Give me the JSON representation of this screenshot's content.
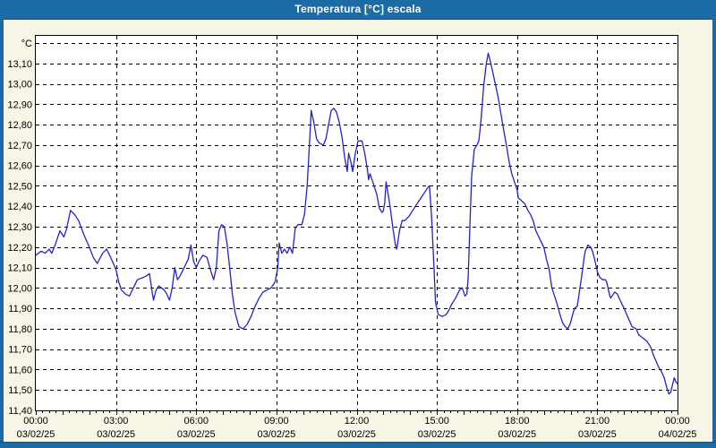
{
  "window": {
    "title": "Temperatura [°C] escala"
  },
  "colors": {
    "chrome_blue": "#1C6BA4",
    "background": "#F7F5E6",
    "plot_background": "#FFFFFF",
    "grid": "#000000",
    "axis_text": "#000000",
    "series_line": "#2323CB"
  },
  "chart_data": {
    "type": "line",
    "title": "Temperatura [°C] escala",
    "ylabel_unit": "°C",
    "ylim": [
      11.4,
      13.2
    ],
    "y_tick_step": 0.1,
    "y_tick_labels": [
      "11,40",
      "11,50",
      "11,60",
      "11,70",
      "11,80",
      "11,90",
      "12,00",
      "12,10",
      "12,20",
      "12,30",
      "12,40",
      "12,50",
      "12,60",
      "12,70",
      "12,80",
      "12,90",
      "13,00",
      "13,10"
    ],
    "xlim_hours": [
      0,
      24
    ],
    "x_major_step_hours": 3,
    "x_minor_tick_hours": 0.25,
    "x_ticks": [
      {
        "time": "00:00",
        "date": "03/02/25"
      },
      {
        "time": "03:00",
        "date": "03/02/25"
      },
      {
        "time": "06:00",
        "date": "03/02/25"
      },
      {
        "time": "09:00",
        "date": "03/02/25"
      },
      {
        "time": "12:00",
        "date": "03/02/25"
      },
      {
        "time": "15:00",
        "date": "03/02/25"
      },
      {
        "time": "18:00",
        "date": "03/02/25"
      },
      {
        "time": "21:00",
        "date": "03/02/25"
      },
      {
        "time": "00:00",
        "date": "04/02/25"
      }
    ],
    "grid_style": "dashed",
    "legend": "none",
    "series": [
      {
        "name": "Temperatura [°C]",
        "color": "#2323CB",
        "points_time_hours_value_c": [
          [
            0.0,
            12.16
          ],
          [
            0.2,
            12.18
          ],
          [
            0.35,
            12.17
          ],
          [
            0.5,
            12.19
          ],
          [
            0.6,
            12.17
          ],
          [
            0.75,
            12.22
          ],
          [
            0.9,
            12.28
          ],
          [
            1.05,
            12.25
          ],
          [
            1.15,
            12.29
          ],
          [
            1.3,
            12.38
          ],
          [
            1.45,
            12.36
          ],
          [
            1.6,
            12.33
          ],
          [
            1.8,
            12.26
          ],
          [
            2.0,
            12.2
          ],
          [
            2.15,
            12.15
          ],
          [
            2.3,
            12.12
          ],
          [
            2.5,
            12.17
          ],
          [
            2.65,
            12.19
          ],
          [
            2.8,
            12.15
          ],
          [
            3.0,
            12.09
          ],
          [
            3.1,
            12.03
          ],
          [
            3.2,
            11.99
          ],
          [
            3.35,
            11.97
          ],
          [
            3.5,
            11.96
          ],
          [
            3.65,
            12.0
          ],
          [
            3.8,
            12.04
          ],
          [
            4.0,
            12.05
          ],
          [
            4.15,
            12.06
          ],
          [
            4.25,
            12.07
          ],
          [
            4.35,
            11.98
          ],
          [
            4.4,
            11.94
          ],
          [
            4.5,
            11.99
          ],
          [
            4.6,
            12.01
          ],
          [
            4.7,
            12.0
          ],
          [
            4.8,
            11.99
          ],
          [
            4.9,
            11.97
          ],
          [
            5.0,
            11.94
          ],
          [
            5.1,
            12.0
          ],
          [
            5.2,
            12.1
          ],
          [
            5.3,
            12.04
          ],
          [
            5.4,
            12.06
          ],
          [
            5.55,
            12.1
          ],
          [
            5.7,
            12.14
          ],
          [
            5.8,
            12.21
          ],
          [
            5.9,
            12.13
          ],
          [
            6.0,
            12.1
          ],
          [
            6.1,
            12.13
          ],
          [
            6.25,
            12.16
          ],
          [
            6.4,
            12.15
          ],
          [
            6.55,
            12.08
          ],
          [
            6.65,
            12.04
          ],
          [
            6.75,
            12.1
          ],
          [
            6.85,
            12.28
          ],
          [
            6.95,
            12.31
          ],
          [
            7.05,
            12.3
          ],
          [
            7.15,
            12.22
          ],
          [
            7.25,
            12.1
          ],
          [
            7.35,
            11.97
          ],
          [
            7.45,
            11.88
          ],
          [
            7.6,
            11.81
          ],
          [
            7.75,
            11.8
          ],
          [
            7.9,
            11.82
          ],
          [
            8.05,
            11.86
          ],
          [
            8.2,
            11.91
          ],
          [
            8.35,
            11.95
          ],
          [
            8.5,
            11.98
          ],
          [
            8.65,
            11.99
          ],
          [
            8.8,
            12.0
          ],
          [
            8.95,
            12.03
          ],
          [
            9.05,
            12.1
          ],
          [
            9.1,
            12.22
          ],
          [
            9.2,
            12.17
          ],
          [
            9.3,
            12.19
          ],
          [
            9.4,
            12.17
          ],
          [
            9.5,
            12.2
          ],
          [
            9.6,
            12.17
          ],
          [
            9.7,
            12.29
          ],
          [
            9.8,
            12.31
          ],
          [
            9.95,
            12.31
          ],
          [
            10.05,
            12.36
          ],
          [
            10.15,
            12.5
          ],
          [
            10.25,
            12.74
          ],
          [
            10.3,
            12.87
          ],
          [
            10.4,
            12.81
          ],
          [
            10.5,
            12.73
          ],
          [
            10.6,
            12.71
          ],
          [
            10.75,
            12.7
          ],
          [
            10.85,
            12.73
          ],
          [
            10.95,
            12.8
          ],
          [
            11.05,
            12.87
          ],
          [
            11.15,
            12.88
          ],
          [
            11.25,
            12.86
          ],
          [
            11.35,
            12.81
          ],
          [
            11.45,
            12.74
          ],
          [
            11.55,
            12.64
          ],
          [
            11.65,
            12.57
          ],
          [
            11.7,
            12.66
          ],
          [
            11.78,
            12.62
          ],
          [
            11.85,
            12.57
          ],
          [
            11.95,
            12.66
          ],
          [
            12.05,
            12.72
          ],
          [
            12.2,
            12.72
          ],
          [
            12.3,
            12.66
          ],
          [
            12.4,
            12.58
          ],
          [
            12.45,
            12.53
          ],
          [
            12.5,
            12.56
          ],
          [
            12.55,
            12.54
          ],
          [
            12.65,
            12.5
          ],
          [
            12.75,
            12.46
          ],
          [
            12.85,
            12.39
          ],
          [
            12.95,
            12.37
          ],
          [
            13.0,
            12.38
          ],
          [
            13.05,
            12.42
          ],
          [
            13.1,
            12.52
          ],
          [
            13.15,
            12.48
          ],
          [
            13.25,
            12.4
          ],
          [
            13.35,
            12.3
          ],
          [
            13.45,
            12.21
          ],
          [
            13.5,
            12.19
          ],
          [
            13.6,
            12.28
          ],
          [
            13.7,
            12.33
          ],
          [
            13.8,
            12.33
          ],
          [
            13.95,
            12.35
          ],
          [
            14.1,
            12.38
          ],
          [
            14.25,
            12.41
          ],
          [
            14.4,
            12.44
          ],
          [
            14.55,
            12.47
          ],
          [
            14.65,
            12.49
          ],
          [
            14.72,
            12.5
          ],
          [
            14.8,
            12.35
          ],
          [
            14.85,
            12.22
          ],
          [
            14.9,
            12.08
          ],
          [
            14.95,
            11.93
          ],
          [
            15.05,
            11.87
          ],
          [
            15.2,
            11.86
          ],
          [
            15.35,
            11.87
          ],
          [
            15.45,
            11.89
          ],
          [
            15.55,
            11.92
          ],
          [
            15.7,
            11.95
          ],
          [
            15.85,
            11.99
          ],
          [
            15.95,
            12.0
          ],
          [
            16.05,
            11.96
          ],
          [
            16.12,
            11.97
          ],
          [
            16.17,
            12.05
          ],
          [
            16.22,
            12.25
          ],
          [
            16.3,
            12.55
          ],
          [
            16.4,
            12.68
          ],
          [
            16.5,
            12.7
          ],
          [
            16.57,
            12.72
          ],
          [
            16.65,
            12.82
          ],
          [
            16.75,
            12.99
          ],
          [
            16.85,
            13.1
          ],
          [
            16.92,
            13.15
          ],
          [
            17.0,
            13.11
          ],
          [
            17.1,
            13.05
          ],
          [
            17.2,
            12.99
          ],
          [
            17.3,
            12.93
          ],
          [
            17.45,
            12.81
          ],
          [
            17.6,
            12.7
          ],
          [
            17.7,
            12.62
          ],
          [
            17.8,
            12.56
          ],
          [
            17.9,
            12.52
          ],
          [
            18.0,
            12.48
          ],
          [
            18.05,
            12.44
          ],
          [
            18.15,
            12.43
          ],
          [
            18.3,
            12.41
          ],
          [
            18.4,
            12.38
          ],
          [
            18.5,
            12.36
          ],
          [
            18.6,
            12.33
          ],
          [
            18.7,
            12.28
          ],
          [
            18.85,
            12.24
          ],
          [
            19.0,
            12.2
          ],
          [
            19.1,
            12.14
          ],
          [
            19.2,
            12.09
          ],
          [
            19.3,
            12.0
          ],
          [
            19.4,
            11.96
          ],
          [
            19.5,
            11.92
          ],
          [
            19.6,
            11.87
          ],
          [
            19.7,
            11.83
          ],
          [
            19.8,
            11.81
          ],
          [
            19.9,
            11.8
          ],
          [
            20.0,
            11.83
          ],
          [
            20.1,
            11.88
          ],
          [
            20.15,
            11.9
          ],
          [
            20.25,
            11.91
          ],
          [
            20.35,
            12.0
          ],
          [
            20.42,
            12.06
          ],
          [
            20.5,
            12.14
          ],
          [
            20.55,
            12.18
          ],
          [
            20.65,
            12.21
          ],
          [
            20.75,
            12.2
          ],
          [
            20.82,
            12.18
          ],
          [
            20.9,
            12.14
          ],
          [
            21.0,
            12.08
          ],
          [
            21.1,
            12.05
          ],
          [
            21.2,
            12.04
          ],
          [
            21.3,
            12.04
          ],
          [
            21.35,
            12.03
          ],
          [
            21.45,
            11.97
          ],
          [
            21.5,
            11.95
          ],
          [
            21.6,
            11.97
          ],
          [
            21.65,
            11.98
          ],
          [
            21.75,
            11.97
          ],
          [
            21.85,
            11.94
          ],
          [
            22.0,
            11.9
          ],
          [
            22.1,
            11.87
          ],
          [
            22.2,
            11.84
          ],
          [
            22.3,
            11.81
          ],
          [
            22.45,
            11.8
          ],
          [
            22.55,
            11.77
          ],
          [
            22.65,
            11.76
          ],
          [
            22.75,
            11.75
          ],
          [
            22.85,
            11.74
          ],
          [
            23.0,
            11.71
          ],
          [
            23.1,
            11.67
          ],
          [
            23.2,
            11.64
          ],
          [
            23.3,
            11.61
          ],
          [
            23.4,
            11.59
          ],
          [
            23.5,
            11.56
          ],
          [
            23.6,
            11.51
          ],
          [
            23.68,
            11.48
          ],
          [
            23.75,
            11.49
          ],
          [
            23.82,
            11.53
          ],
          [
            23.88,
            11.56
          ],
          [
            23.94,
            11.54
          ],
          [
            24.0,
            11.53
          ]
        ]
      }
    ]
  }
}
